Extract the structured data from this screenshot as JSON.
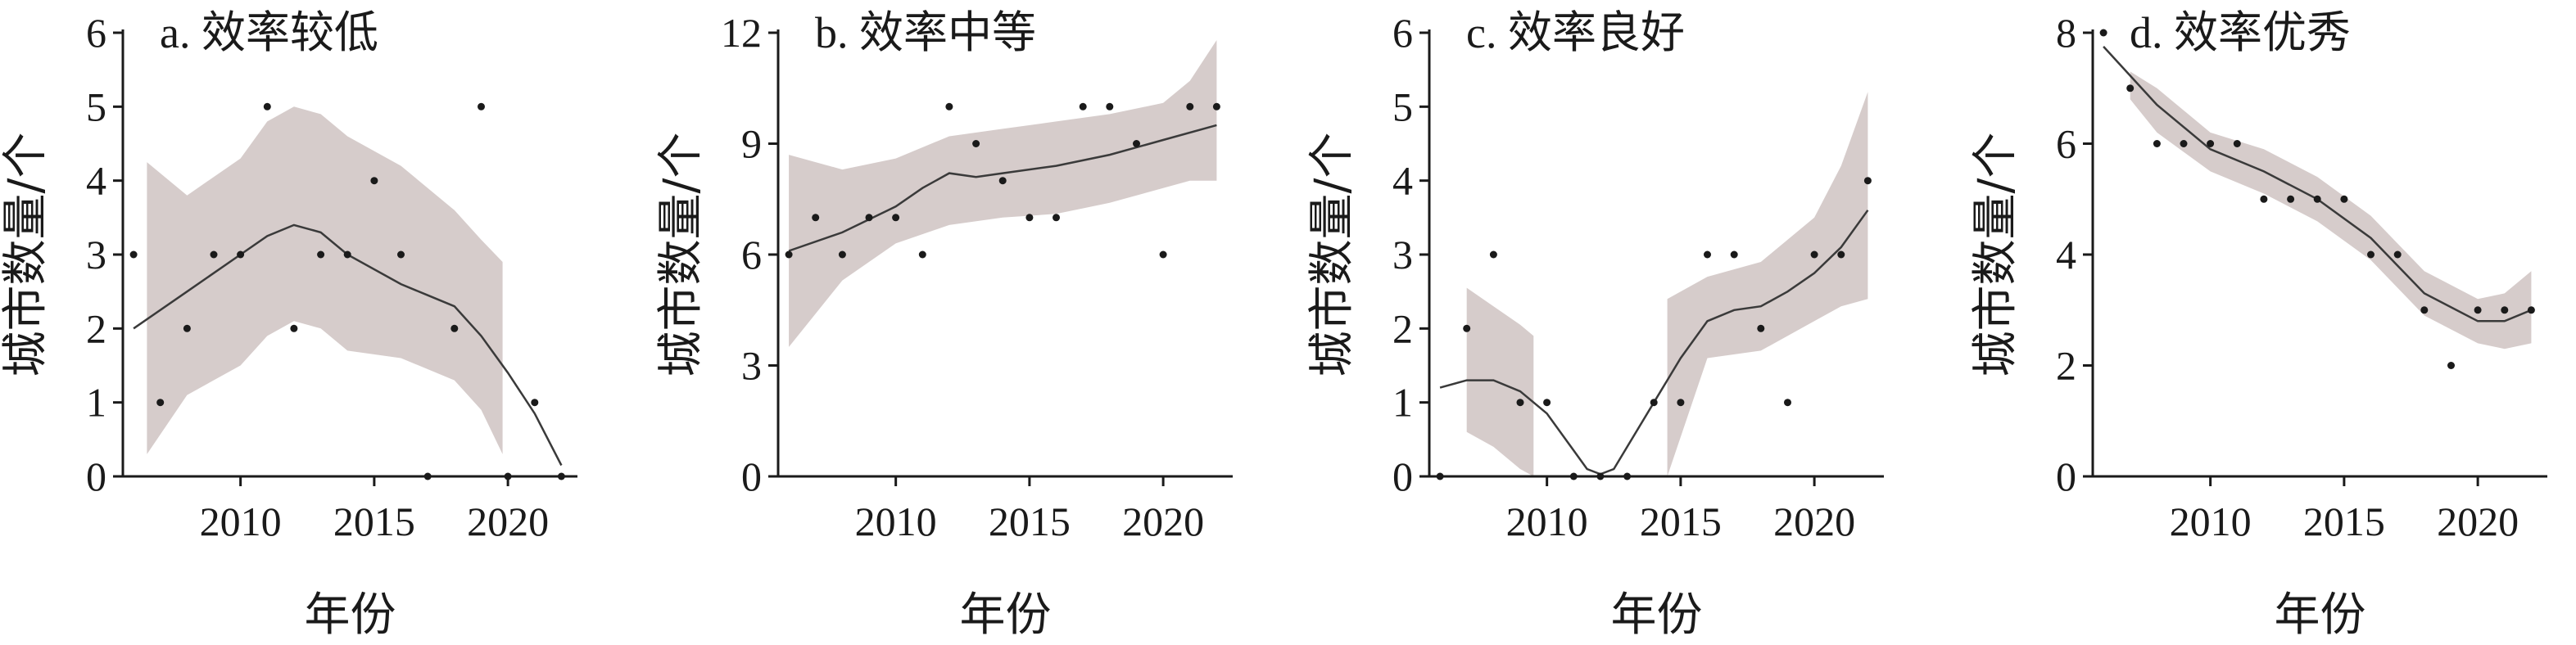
{
  "chart_data": [
    {
      "type": "scatter",
      "title": "a. 效率较低",
      "xlabel": "年份",
      "ylabel": "城市数量/个",
      "xlim": [
        2005.6,
        2022.6
      ],
      "ylim": [
        0,
        6
      ],
      "xticks": [
        2010,
        2015,
        2020
      ],
      "yticks": [
        0,
        1,
        2,
        3,
        4,
        5,
        6
      ],
      "points": {
        "x": [
          2006,
          2007,
          2008,
          2009,
          2010,
          2011,
          2012,
          2013,
          2014,
          2015,
          2016,
          2017,
          2018,
          2019,
          2020,
          2021,
          2022
        ],
        "y": [
          3,
          1,
          2,
          3,
          3,
          5,
          2,
          3,
          3,
          4,
          3,
          0,
          2,
          5,
          0,
          1,
          0
        ]
      },
      "fit": {
        "x": [
          2006,
          2008,
          2010,
          2011,
          2012,
          2013,
          2014,
          2016,
          2017,
          2018,
          2019,
          2020,
          2021,
          2022
        ],
        "y": [
          2.0,
          2.5,
          3.0,
          3.25,
          3.4,
          3.3,
          3.0,
          2.6,
          2.45,
          2.3,
          1.9,
          1.4,
          0.85,
          0.15
        ]
      },
      "band_segments": [
        {
          "x": [
            2006.5,
            2008,
            2010,
            2011,
            2012,
            2013,
            2014,
            2016,
            2018,
            2019,
            2019.8
          ],
          "lower": [
            0.3,
            1.1,
            1.5,
            1.9,
            2.1,
            2.0,
            1.7,
            1.6,
            1.3,
            0.9,
            0.3
          ],
          "upper": [
            4.25,
            3.8,
            4.3,
            4.8,
            5.0,
            4.9,
            4.6,
            4.2,
            3.6,
            3.2,
            2.9
          ]
        }
      ]
    },
    {
      "type": "scatter",
      "title": "b. 效率中等",
      "xlabel": "年份",
      "ylabel": "城市数量/个",
      "xlim": [
        2005.6,
        2022.6
      ],
      "ylim": [
        0,
        12
      ],
      "xticks": [
        2010,
        2015,
        2020
      ],
      "yticks": [
        0,
        3,
        6,
        9,
        12
      ],
      "points": {
        "x": [
          2006,
          2007,
          2008,
          2009,
          2010,
          2011,
          2012,
          2013,
          2014,
          2015,
          2016,
          2017,
          2018,
          2019,
          2020,
          2021,
          2022
        ],
        "y": [
          6,
          7,
          6,
          7,
          7,
          6,
          10,
          9,
          8,
          7,
          7,
          10,
          10,
          9,
          6,
          10,
          10
        ]
      },
      "fit": {
        "x": [
          2006,
          2008,
          2010,
          2011,
          2012,
          2013,
          2014,
          2016,
          2018,
          2020,
          2022
        ],
        "y": [
          6.1,
          6.6,
          7.3,
          7.8,
          8.2,
          8.1,
          8.2,
          8.4,
          8.7,
          9.1,
          9.5
        ]
      },
      "band_segments": [
        {
          "x": [
            2006,
            2008,
            2010,
            2012,
            2014,
            2016,
            2018,
            2020,
            2021,
            2022
          ],
          "lower": [
            3.5,
            5.3,
            6.3,
            6.8,
            7.0,
            7.1,
            7.4,
            7.8,
            8.0,
            8.0
          ],
          "upper": [
            8.7,
            8.3,
            8.6,
            9.2,
            9.4,
            9.6,
            9.8,
            10.1,
            10.7,
            11.8
          ]
        }
      ]
    },
    {
      "type": "scatter",
      "title": "c. 效率良好",
      "xlabel": "年份",
      "ylabel": "城市数量/个",
      "xlim": [
        2005.6,
        2022.6
      ],
      "ylim": [
        0,
        6
      ],
      "xticks": [
        2010,
        2015,
        2020
      ],
      "yticks": [
        0,
        1,
        2,
        3,
        4,
        5,
        6
      ],
      "points": {
        "x": [
          2006,
          2007,
          2008,
          2009,
          2010,
          2011,
          2012,
          2013,
          2014,
          2015,
          2016,
          2017,
          2018,
          2019,
          2020,
          2021,
          2022
        ],
        "y": [
          0,
          2,
          3,
          1,
          1,
          0,
          0,
          0,
          1,
          1,
          3,
          3,
          2,
          1,
          3,
          3,
          4
        ]
      },
      "fit": {
        "x": [
          2006,
          2007,
          2008,
          2009,
          2010,
          2011,
          2011.5,
          2012,
          2012.5,
          2013,
          2014,
          2015,
          2016,
          2017,
          2018,
          2019,
          2020,
          2021,
          2022
        ],
        "y": [
          1.2,
          1.3,
          1.3,
          1.15,
          0.85,
          0.35,
          0.1,
          0.03,
          0.1,
          0.4,
          1.0,
          1.6,
          2.1,
          2.25,
          2.3,
          2.5,
          2.75,
          3.1,
          3.6
        ]
      },
      "band_segments": [
        {
          "x": [
            2007,
            2008,
            2009,
            2009.5
          ],
          "lower": [
            0.6,
            0.4,
            0.1,
            0.0
          ],
          "upper": [
            2.55,
            2.3,
            2.05,
            1.9
          ]
        },
        {
          "x": [
            2014.5,
            2016,
            2018,
            2020,
            2021,
            2022
          ],
          "lower": [
            0.0,
            1.6,
            1.7,
            2.1,
            2.3,
            2.4
          ],
          "upper": [
            2.4,
            2.7,
            2.9,
            3.5,
            4.2,
            5.2
          ]
        }
      ]
    },
    {
      "type": "scatter",
      "title": "d. 效率优秀",
      "xlabel": "年份",
      "ylabel": "城市数量/个",
      "xlim": [
        2005.6,
        2022.6
      ],
      "ylim": [
        0,
        8
      ],
      "xticks": [
        2010,
        2015,
        2020
      ],
      "yticks": [
        0,
        2,
        4,
        6,
        8
      ],
      "points": {
        "x": [
          2006,
          2007,
          2008,
          2009,
          2010,
          2011,
          2012,
          2013,
          2014,
          2015,
          2016,
          2017,
          2018,
          2019,
          2020,
          2021,
          2022
        ],
        "y": [
          8,
          7,
          6,
          6,
          6,
          6,
          5,
          5,
          5,
          5,
          4,
          4,
          3,
          2,
          3,
          3,
          3
        ]
      },
      "fit": {
        "x": [
          2006,
          2008,
          2010,
          2012,
          2014,
          2016,
          2018,
          2020,
          2021,
          2022
        ],
        "y": [
          7.75,
          6.7,
          5.9,
          5.5,
          5.0,
          4.3,
          3.3,
          2.8,
          2.8,
          3.0
        ]
      },
      "band_segments": [
        {
          "x": [
            2007,
            2008,
            2010,
            2012,
            2014,
            2016,
            2018,
            2020,
            2021,
            2022
          ],
          "lower": [
            6.8,
            6.2,
            5.5,
            5.1,
            4.6,
            3.9,
            2.9,
            2.4,
            2.3,
            2.4
          ],
          "upper": [
            7.3,
            7.0,
            6.2,
            5.9,
            5.4,
            4.7,
            3.7,
            3.2,
            3.3,
            3.7
          ]
        }
      ]
    }
  ]
}
